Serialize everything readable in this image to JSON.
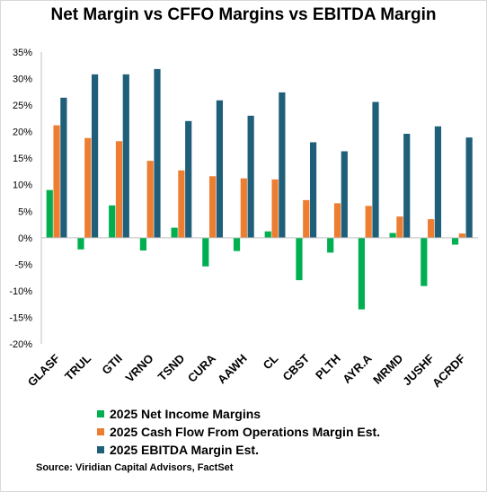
{
  "chart_data": {
    "type": "bar",
    "title": "Net Margin vs CFFO Margins vs EBITDA Margin",
    "categories": [
      "GLASF",
      "TRUL",
      "GTII",
      "VRNO",
      "TSND",
      "CURA",
      "AAWH",
      "CL",
      "CBST",
      "PLTH",
      "AYR.A",
      "MRMD",
      "JUSHF",
      "ACRDF"
    ],
    "series": [
      {
        "name": "2025 Net Income Margins",
        "color": "#00b050",
        "values": [
          9.0,
          -2.2,
          6.1,
          -2.4,
          1.9,
          -5.4,
          -2.5,
          1.2,
          -8.0,
          -2.8,
          -13.5,
          0.9,
          -9.1,
          -1.3
        ]
      },
      {
        "name": "2025 Cash Flow From Operations Margin Est.",
        "color": "#ed7d31",
        "values": [
          21.2,
          18.8,
          18.2,
          14.5,
          12.7,
          11.6,
          11.2,
          11.0,
          7.1,
          6.5,
          6.0,
          4.0,
          3.5,
          0.8
        ]
      },
      {
        "name": "2025 EBITDA Margin Est.",
        "color": "#1f5f7a",
        "values": [
          26.4,
          30.8,
          30.8,
          31.8,
          22.0,
          25.9,
          23.0,
          27.4,
          18.0,
          16.3,
          25.6,
          19.6,
          21.0,
          18.9
        ]
      }
    ],
    "ylim": [
      -20,
      35
    ],
    "yticks": [
      "-20%",
      "-15%",
      "-10%",
      "-5%",
      "0%",
      "5%",
      "10%",
      "15%",
      "20%",
      "25%",
      "30%",
      "35%"
    ],
    "grid": false,
    "legend": "bottom"
  },
  "source": "Source: Viridian Capital Advisors, FactSet"
}
